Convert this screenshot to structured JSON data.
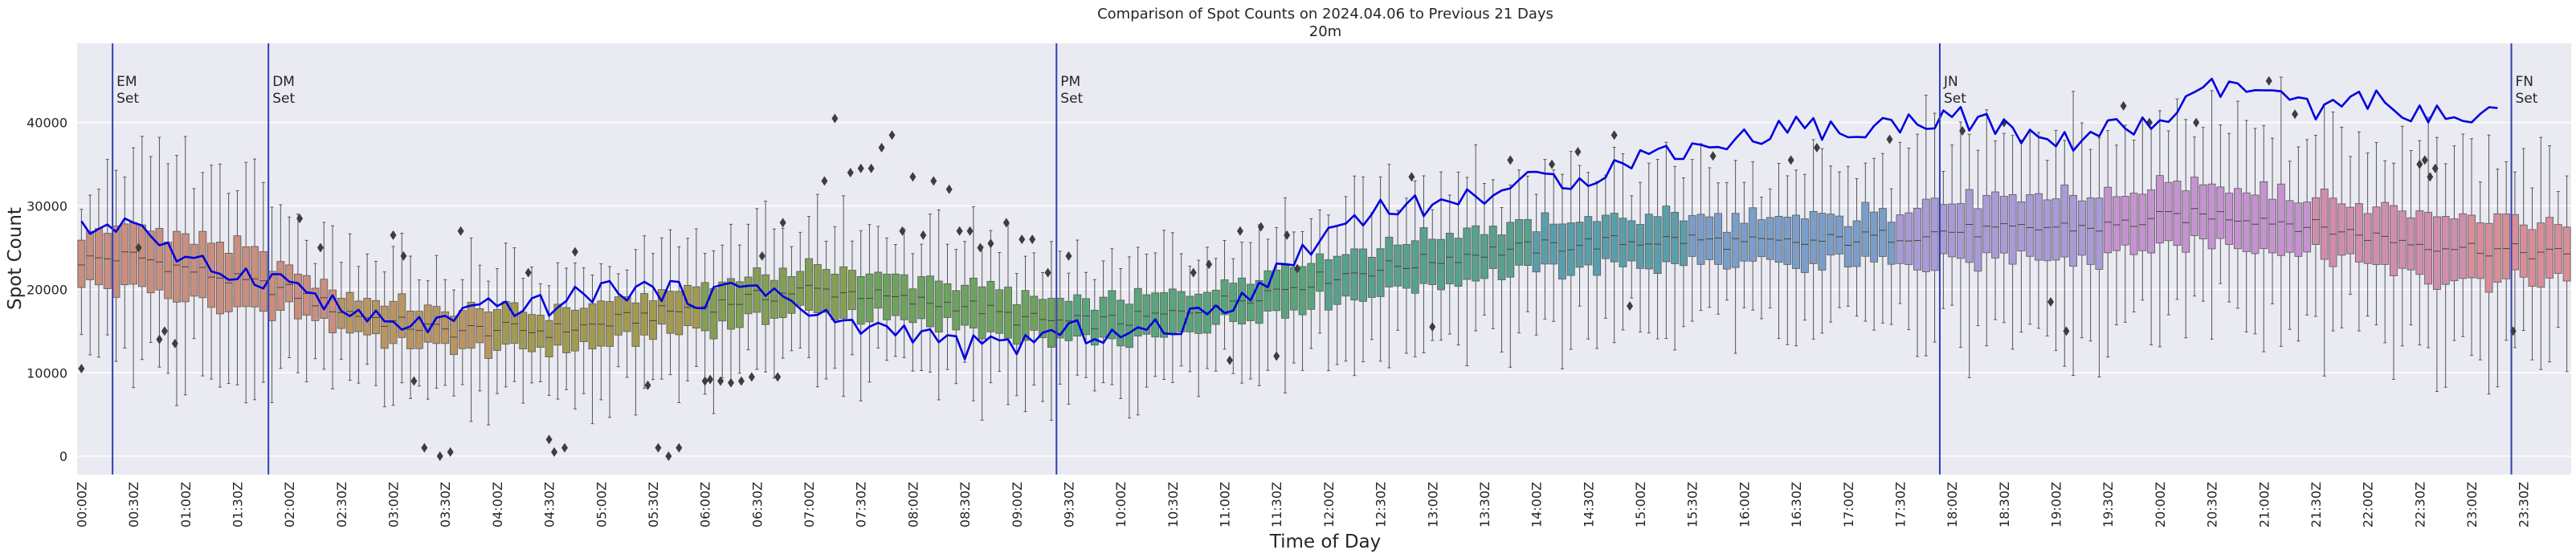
{
  "chart_data": {
    "type": "box+line",
    "title": "Comparison of Spot Counts on 2024.04.06 to Previous 21 Days",
    "subtitle": "20m",
    "xlabel": "Time of Day",
    "ylabel": "Spot Count",
    "ylim": [
      -2200,
      49500
    ],
    "yticks": [
      0,
      10000,
      20000,
      30000,
      40000
    ],
    "ytick_labels": [
      "0",
      "10000",
      "20000",
      "30000",
      "40000"
    ],
    "slots_per_day": 288,
    "slot_minutes": 5,
    "xtick_labels": [
      "00:00Z",
      "00:30Z",
      "01:00Z",
      "01:30Z",
      "02:00Z",
      "02:30Z",
      "03:00Z",
      "03:30Z",
      "04:00Z",
      "04:30Z",
      "05:00Z",
      "05:30Z",
      "06:00Z",
      "06:30Z",
      "07:00Z",
      "07:30Z",
      "08:00Z",
      "08:30Z",
      "09:00Z",
      "09:30Z",
      "10:00Z",
      "10:30Z",
      "11:00Z",
      "11:30Z",
      "12:00Z",
      "12:30Z",
      "13:00Z",
      "13:30Z",
      "14:00Z",
      "14:30Z",
      "15:00Z",
      "15:30Z",
      "16:00Z",
      "16:30Z",
      "17:00Z",
      "17:30Z",
      "18:00Z",
      "18:30Z",
      "19:00Z",
      "19:30Z",
      "20:00Z",
      "20:30Z",
      "21:00Z",
      "21:30Z",
      "22:00Z",
      "22:30Z",
      "23:00Z",
      "23:30Z"
    ],
    "vertical_markers": [
      {
        "label": "EM",
        "sub": "Set",
        "slot": 4
      },
      {
        "label": "DM",
        "sub": "Set",
        "slot": 22
      },
      {
        "label": "PM",
        "sub": "Set",
        "slot": 113
      },
      {
        "label": "JN",
        "sub": "Set",
        "slot": 215
      },
      {
        "label": "FN",
        "sub": "Set",
        "slot": 281
      }
    ],
    "box_median_profile": {
      "hours": [
        0,
        0.5,
        1,
        1.5,
        2,
        2.5,
        3,
        3.5,
        4,
        4.5,
        5,
        5.5,
        6,
        6.5,
        7,
        7.5,
        8,
        8.5,
        9,
        9.5,
        10,
        10.5,
        11,
        11.5,
        12,
        12.5,
        13,
        13.5,
        14,
        14.5,
        15,
        15.5,
        16,
        16.5,
        17,
        17.5,
        18,
        18.5,
        19,
        19.5,
        20,
        20.5,
        21,
        21.5,
        22,
        22.5,
        23,
        23.5,
        24
      ],
      "values": [
        23500,
        24000,
        22500,
        21000,
        19800,
        17500,
        16000,
        15000,
        15200,
        15000,
        15800,
        17000,
        18000,
        19000,
        20000,
        19500,
        18500,
        18200,
        16500,
        16000,
        16200,
        17000,
        18500,
        20000,
        21500,
        22500,
        23500,
        24500,
        25000,
        25500,
        25800,
        26000,
        25500,
        25500,
        26000,
        26500,
        27000,
        27000,
        27500,
        27500,
        28500,
        29000,
        28500,
        27500,
        26500,
        25500,
        25000,
        24500,
        24000
      ]
    },
    "box_iqr": [
      {
        "from": 0,
        "to": 2,
        "value": 7000
      },
      {
        "from": 2,
        "to": 6,
        "value": 4500
      },
      {
        "from": 6,
        "to": 11.5,
        "value": 5000
      },
      {
        "from": 11.5,
        "to": 17.5,
        "value": 5500
      },
      {
        "from": 17.5,
        "to": 24,
        "value": 7000
      }
    ],
    "box_colors": [
      {
        "from": 0,
        "color": "#c88e7f"
      },
      {
        "from": 2.5,
        "color": "#b99563"
      },
      {
        "from": 4,
        "color": "#a39a52"
      },
      {
        "from": 6,
        "color": "#839f56"
      },
      {
        "from": 7.5,
        "color": "#6ea25f"
      },
      {
        "from": 9.5,
        "color": "#5aa47b"
      },
      {
        "from": 12,
        "color": "#59a08e"
      },
      {
        "from": 14,
        "color": "#5b9eaa"
      },
      {
        "from": 15.5,
        "color": "#7a9ec9"
      },
      {
        "from": 17.5,
        "color": "#a99bd6"
      },
      {
        "from": 19.5,
        "color": "#c593cf"
      },
      {
        "from": 21.5,
        "color": "#d08dae"
      },
      {
        "from": 23,
        "color": "#d88e99"
      }
    ],
    "series": [
      {
        "name": "2024.04.06",
        "color": "#0000e0",
        "hours": [
          0,
          0.5,
          1,
          1.5,
          2,
          2.5,
          3,
          3.5,
          4,
          4.5,
          5,
          5.5,
          6,
          6.5,
          7,
          7.5,
          8,
          8.5,
          9,
          9.5,
          10,
          10.5,
          11,
          11.5,
          12,
          12.5,
          13,
          13.5,
          14,
          14.5,
          15,
          15.5,
          16,
          16.5,
          17,
          17.5,
          18,
          18.5,
          19,
          19.5,
          20,
          20.5,
          21,
          21.5,
          22,
          22.5,
          23,
          23.33
        ],
        "values": [
          27000,
          28500,
          23000,
          22000,
          21000,
          17500,
          15500,
          16000,
          18000,
          18000,
          20000,
          20000,
          19000,
          21000,
          17000,
          15500,
          15000,
          13000,
          13500,
          15000,
          14500,
          15500,
          18000,
          22000,
          27000,
          30000,
          30000,
          31500,
          33000,
          33500,
          36000,
          37000,
          38000,
          40000,
          38500,
          40000,
          41000,
          39000,
          37500,
          39000,
          40000,
          44000,
          44000,
          41000,
          43000,
          41000,
          40000,
          41000
        ]
      }
    ],
    "outliers": {
      "hours": [
        0.0,
        0.55,
        0.75,
        0.8,
        0.9,
        2.1,
        2.3,
        3.0,
        3.1,
        3.2,
        3.3,
        3.45,
        3.55,
        3.65,
        4.3,
        4.5,
        4.55,
        4.65,
        4.75,
        5.45,
        5.55,
        5.65,
        5.75,
        6.0,
        6.05,
        6.15,
        6.25,
        6.35,
        6.45,
        6.55,
        6.7,
        6.75,
        7.15,
        7.25,
        7.4,
        7.5,
        7.6,
        7.7,
        7.8,
        7.9,
        8.0,
        8.1,
        8.2,
        8.35,
        8.45,
        8.55,
        8.65,
        8.75,
        8.9,
        9.05,
        9.15,
        9.3,
        9.5,
        10.7,
        10.85,
        11.05,
        11.15,
        11.35,
        11.5,
        11.6,
        11.7,
        12.8,
        13.0,
        13.75,
        14.15,
        14.4,
        14.75,
        14.9,
        15.7,
        16.45,
        16.7,
        17.4,
        18.1,
        18.5,
        18.95,
        19.1,
        19.65,
        19.9,
        20.35,
        21.05,
        21.3,
        22.5,
        22.55,
        22.6,
        22.65,
        23.4
      ],
      "values": [
        10500,
        25000,
        14000,
        15000,
        13500,
        28500,
        25000,
        26500,
        24000,
        9000,
        1000,
        0,
        500,
        27000,
        22000,
        2000,
        500,
        1000,
        24500,
        8500,
        1000,
        0,
        1000,
        9000,
        9200,
        9000,
        8800,
        9000,
        9500,
        24000,
        9500,
        28000,
        33000,
        40500,
        34000,
        34500,
        34500,
        37000,
        38500,
        27000,
        33500,
        26500,
        33000,
        32000,
        27000,
        27000,
        25000,
        25500,
        28000,
        26000,
        26000,
        22000,
        24000,
        22000,
        23000,
        11500,
        27000,
        27500,
        12000,
        26500,
        22500,
        33500,
        15500,
        35500,
        35000,
        36500,
        38500,
        18000,
        36000,
        35500,
        37000,
        38000,
        39000,
        40000,
        18500,
        15000,
        42000,
        40000,
        40000,
        45000,
        41000,
        35000,
        35500,
        33500,
        34500,
        15000
      ]
    }
  }
}
